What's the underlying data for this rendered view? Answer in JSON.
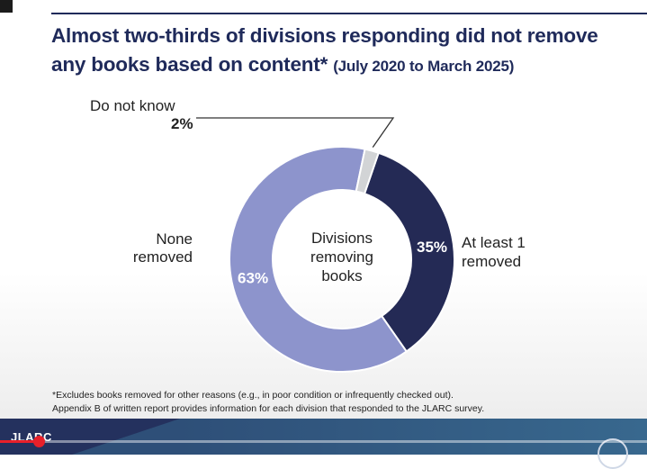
{
  "title": {
    "main": "Almost two-thirds of divisions responding did not remove any books based on content*",
    "date": "(July 2020 to March 2025)"
  },
  "chart_data": {
    "type": "pie",
    "center_label": [
      "Divisions",
      "removing",
      "books"
    ],
    "slices": [
      {
        "label": "At least 1 removed",
        "value": 35,
        "value_label": "35%",
        "color": "#242a55"
      },
      {
        "label": "None removed",
        "value": 63,
        "value_label": "63%",
        "color": "#8d94cc"
      },
      {
        "label": "Do not know",
        "value": 2,
        "value_label": "2%",
        "color": "#d2d4d6"
      }
    ]
  },
  "labels": {
    "do_not_know": "Do not know",
    "do_not_know_pct": "2%",
    "none_line1": "None",
    "none_line2": "removed",
    "atleast_line1": "At least 1",
    "atleast_line2": "removed"
  },
  "footnote": {
    "line1": "*Excludes books removed for other reasons (e.g., in poor condition or infrequently checked out).",
    "line2": "Appendix B of written report provides information for each division that responded to the JLARC survey."
  },
  "footer": {
    "logo": "JLARC"
  },
  "video": {
    "progress_fraction": 0.06
  }
}
